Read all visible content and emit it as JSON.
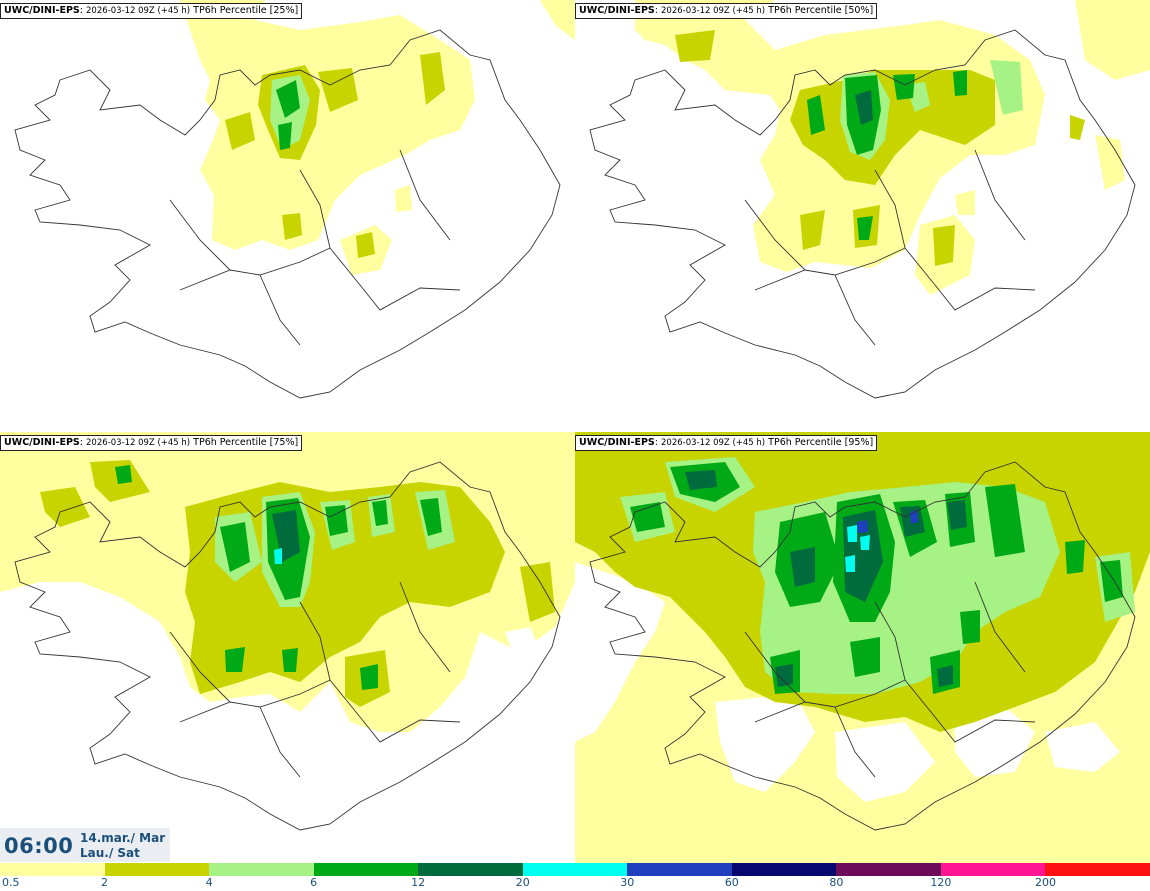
{
  "panels": [
    {
      "model": "UWC/DINI-EPS",
      "run": "2026-03-12 09Z (+45 h)",
      "product": "TP6h Percentile [25%]"
    },
    {
      "model": "UWC/DINI-EPS",
      "run": "2026-03-12 09Z (+45 h)",
      "product": "TP6h Percentile [50%]"
    },
    {
      "model": "UWC/DINI-EPS",
      "run": "2026-03-12 09Z (+45 h)",
      "product": "TP6h Percentile [75%]"
    },
    {
      "model": "UWC/DINI-EPS",
      "run": "2026-03-12 09Z (+45 h)",
      "product": "TP6h Percentile [95%]"
    }
  ],
  "valid_time": {
    "time": "06:00",
    "date_line1": "14.mar./ Mar",
    "date_line2": "Lau./ Sat"
  },
  "colorbar": {
    "levels": [
      {
        "label": "0.5",
        "color": "#ffff9f"
      },
      {
        "label": "2",
        "color": "#c8d400"
      },
      {
        "label": "4",
        "color": "#a6f285"
      },
      {
        "label": "6",
        "color": "#00aa17"
      },
      {
        "label": "12",
        "color": "#006b3c"
      },
      {
        "label": "20",
        "color": "#00ffee"
      },
      {
        "label": "30",
        "color": "#1f3fbf"
      },
      {
        "label": "60",
        "color": "#05086e"
      },
      {
        "label": "80",
        "color": "#6e0a5a"
      },
      {
        "label": "120",
        "color": "#ff1493"
      },
      {
        "label": "200",
        "color": "#ff1010"
      }
    ]
  }
}
